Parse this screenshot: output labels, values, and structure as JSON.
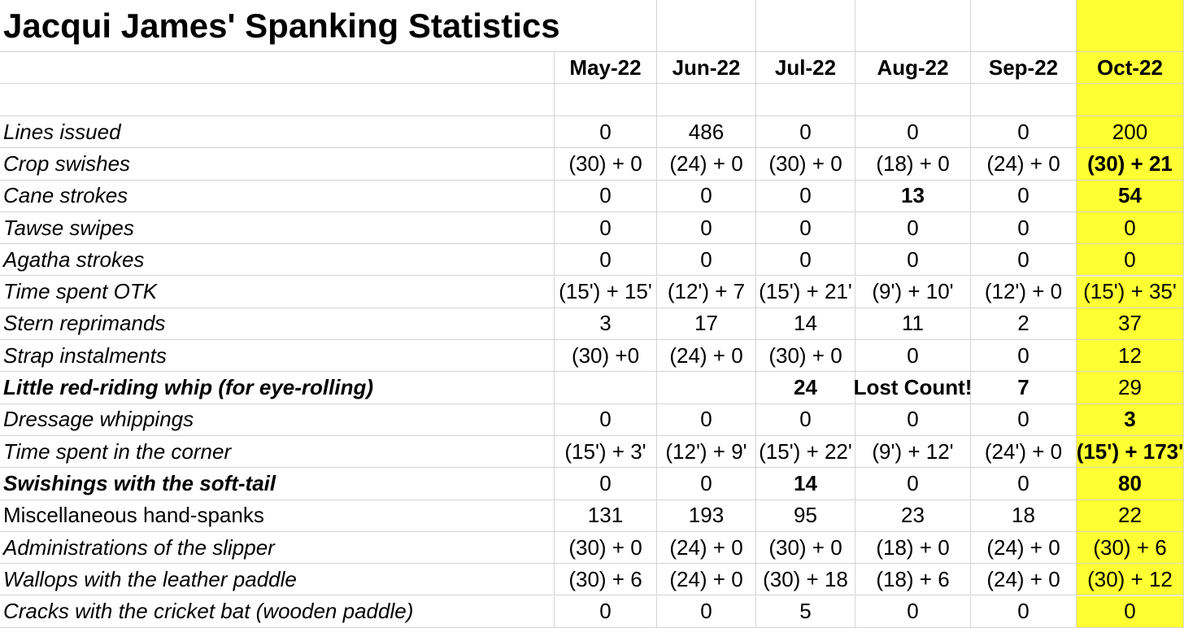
{
  "title": "Jacqui James' Spanking Statistics",
  "highlight_color": "#ffff33",
  "months": [
    "May-22",
    "Jun-22",
    "Jul-22",
    "Aug-22",
    "Sep-22",
    "Oct-22"
  ],
  "rows": [
    {
      "label": "Lines issued",
      "label_bold": false,
      "italic": true,
      "values": [
        "0",
        "486",
        "0",
        "0",
        "0",
        "200"
      ],
      "bold": [
        false,
        false,
        false,
        false,
        false,
        false
      ]
    },
    {
      "label": "Crop swishes",
      "label_bold": false,
      "italic": true,
      "values": [
        "(30) + 0",
        "(24) + 0",
        "(30) + 0",
        "(18) + 0",
        "(24) + 0",
        "(30) + 21"
      ],
      "bold": [
        false,
        false,
        false,
        false,
        false,
        true
      ]
    },
    {
      "label": "Cane strokes",
      "label_bold": false,
      "italic": true,
      "values": [
        "0",
        "0",
        "0",
        "13",
        "0",
        "54"
      ],
      "bold": [
        false,
        false,
        false,
        true,
        false,
        true
      ]
    },
    {
      "label": "Tawse swipes",
      "label_bold": false,
      "italic": true,
      "values": [
        "0",
        "0",
        "0",
        "0",
        "0",
        "0"
      ],
      "bold": [
        false,
        false,
        false,
        false,
        false,
        false
      ]
    },
    {
      "label": "Agatha strokes",
      "label_bold": false,
      "italic": true,
      "values": [
        "0",
        "0",
        "0",
        "0",
        "0",
        "0"
      ],
      "bold": [
        false,
        false,
        false,
        false,
        false,
        false
      ]
    },
    {
      "label": "Time spent OTK",
      "label_bold": false,
      "italic": true,
      "values": [
        "(15') + 15'",
        "(12') + 7",
        "(15') + 21'",
        "(9') + 10'",
        "(12') + 0",
        "(15') + 35'"
      ],
      "bold": [
        false,
        false,
        false,
        false,
        false,
        false
      ]
    },
    {
      "label": "Stern reprimands",
      "label_bold": false,
      "italic": true,
      "values": [
        "3",
        "17",
        "14",
        "11",
        "2",
        "37"
      ],
      "bold": [
        false,
        false,
        false,
        false,
        false,
        false
      ]
    },
    {
      "label": "Strap instalments",
      "label_bold": false,
      "italic": true,
      "values": [
        "(30) +0",
        "(24) + 0",
        "(30) + 0",
        "0",
        "0",
        "12"
      ],
      "bold": [
        false,
        false,
        false,
        false,
        false,
        false
      ]
    },
    {
      "label": "Little red-riding whip (for eye-rolling)",
      "label_bold": true,
      "italic": true,
      "values": [
        "",
        "",
        "24",
        "Lost Count!",
        "7",
        "29"
      ],
      "bold": [
        false,
        false,
        true,
        true,
        true,
        false
      ]
    },
    {
      "label": "Dressage whippings",
      "label_bold": false,
      "italic": true,
      "values": [
        "0",
        "0",
        "0",
        "0",
        "0",
        "3"
      ],
      "bold": [
        false,
        false,
        false,
        false,
        false,
        true
      ]
    },
    {
      "label": "Time spent in the corner",
      "label_bold": false,
      "italic": true,
      "values": [
        "(15') + 3'",
        "(12') + 9'",
        "(15') + 22'",
        "(9') + 12'",
        "(24') + 0",
        "(15') + 173'"
      ],
      "bold": [
        false,
        false,
        false,
        false,
        false,
        true
      ]
    },
    {
      "label": "Swishings with the soft-tail",
      "label_bold": true,
      "italic": true,
      "values": [
        "0",
        "0",
        "14",
        "0",
        "0",
        "80"
      ],
      "bold": [
        false,
        false,
        true,
        false,
        false,
        true
      ]
    },
    {
      "label": "Miscellaneous hand-spanks",
      "label_bold": false,
      "italic": false,
      "values": [
        "131",
        "193",
        "95",
        "23",
        "18",
        "22"
      ],
      "bold": [
        false,
        false,
        false,
        false,
        false,
        false
      ]
    },
    {
      "label": "Administrations of the slipper",
      "label_bold": false,
      "italic": true,
      "values": [
        "(30) + 0",
        "(24) + 0",
        "(30) + 0",
        "(18) + 0",
        "(24) + 0",
        "(30) + 6"
      ],
      "bold": [
        false,
        false,
        false,
        false,
        false,
        false
      ]
    },
    {
      "label": "Wallops with the leather paddle",
      "label_bold": false,
      "italic": true,
      "values": [
        "(30) + 6",
        "(24) + 0",
        "(30) + 18",
        "(18) + 6",
        "(24) + 0",
        "(30) + 12"
      ],
      "bold": [
        false,
        false,
        false,
        false,
        false,
        false
      ]
    },
    {
      "label": "Cracks with the cricket bat (wooden paddle)",
      "label_bold": false,
      "italic": true,
      "values": [
        "0",
        "0",
        "5",
        "0",
        "0",
        "0"
      ],
      "bold": [
        false,
        false,
        false,
        false,
        false,
        false
      ]
    }
  ]
}
